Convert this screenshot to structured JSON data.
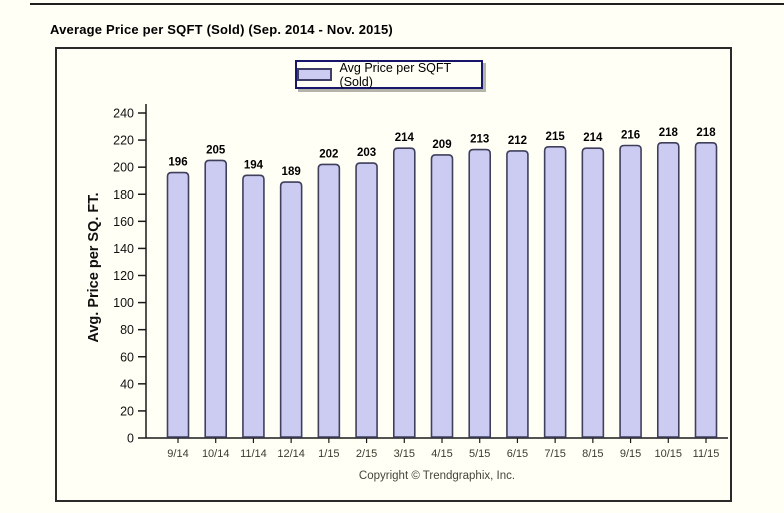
{
  "title": "Average Price per SQFT (Sold) (Sep. 2014 - Nov. 2015)",
  "legend": {
    "label": "Avg Price per SQFT (Sold)"
  },
  "footer": {
    "copyright": "Copyright © Trendgraphix, Inc."
  },
  "colors": {
    "page_background": "#fffff6",
    "bar_fill": "#ccccf2",
    "bar_border": "#3f3f5c",
    "axis": "#1a1a1a",
    "value_label": "#000000",
    "x_tick_label": "#3b3b2d",
    "y_tick_label": "#111111",
    "legend_border": "#16166b",
    "frame_border": "#2a2a2a"
  },
  "chart_data": {
    "type": "bar",
    "title": "Average Price per SQFT (Sold) (Sep. 2014 - Nov. 2015)",
    "categories": [
      "9/14",
      "10/14",
      "11/14",
      "12/14",
      "1/15",
      "2/15",
      "3/15",
      "4/15",
      "5/15",
      "6/15",
      "7/15",
      "8/15",
      "9/15",
      "10/15",
      "11/15"
    ],
    "values": [
      196,
      205,
      194,
      189,
      202,
      203,
      214,
      209,
      213,
      212,
      215,
      214,
      216,
      218,
      218
    ],
    "series_name": "Avg Price per SQFT (Sold)",
    "xlabel": "",
    "ylabel": "Avg. Price per SQ. FT.",
    "ylim": [
      0,
      240
    ],
    "ytick_step": 20,
    "yticks": [
      0,
      20,
      40,
      60,
      80,
      100,
      120,
      140,
      160,
      180,
      200,
      220,
      240
    ],
    "grid": false,
    "legend_position": "top-center",
    "value_labels_shown": true
  }
}
